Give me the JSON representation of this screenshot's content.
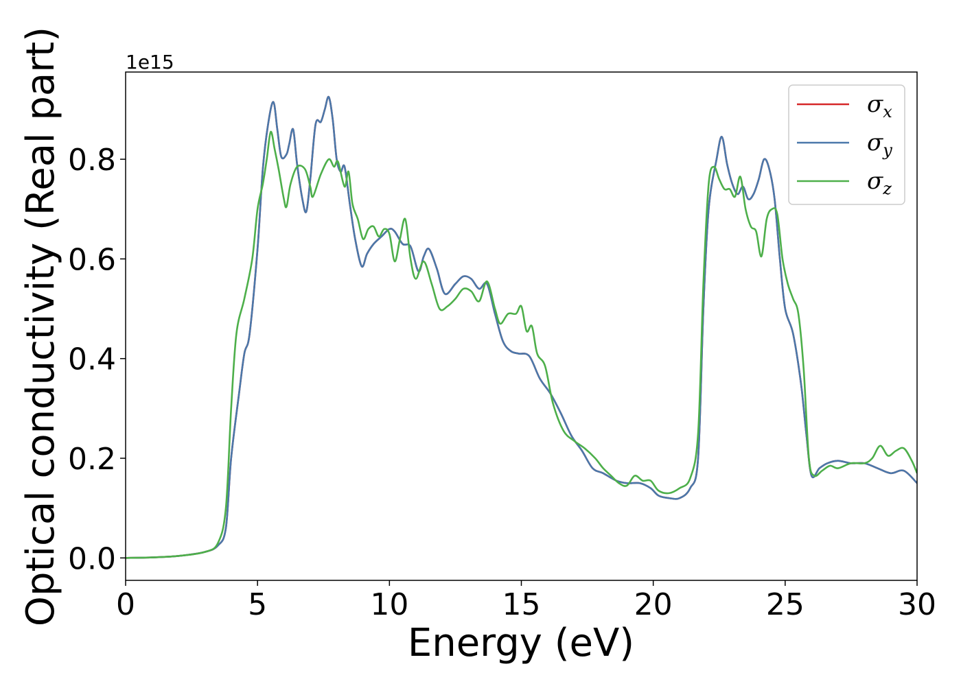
{
  "chart_data": {
    "type": "line",
    "xlabel": "Energy (eV)",
    "ylabel": "Optical conductivity (Real part)",
    "y_offset_text": "1e15",
    "xlim": [
      0,
      30
    ],
    "ylim": [
      -0.045,
      0.975
    ],
    "x_ticks": [
      0,
      5,
      10,
      15,
      20,
      25,
      30
    ],
    "x_tick_labels": [
      "0",
      "5",
      "10",
      "15",
      "20",
      "25",
      "30"
    ],
    "y_ticks": [
      0.0,
      0.2,
      0.4,
      0.6,
      0.8
    ],
    "y_tick_labels": [
      "0.0",
      "0.2",
      "0.4",
      "0.6",
      "0.8"
    ],
    "grid": false,
    "legend_position": "top-right",
    "series": [
      {
        "name": "σx",
        "legend_symbol": "σ",
        "legend_sub": "x",
        "color": "#d62728",
        "points": [
          [
            0,
            0
          ],
          [
            1,
            0.001
          ],
          [
            2,
            0.004
          ],
          [
            3,
            0.012
          ],
          [
            3.5,
            0.025
          ],
          [
            3.8,
            0.06
          ],
          [
            4.0,
            0.2
          ],
          [
            4.3,
            0.33
          ],
          [
            4.5,
            0.41
          ],
          [
            4.7,
            0.45
          ],
          [
            5.0,
            0.62
          ],
          [
            5.2,
            0.78
          ],
          [
            5.4,
            0.87
          ],
          [
            5.6,
            0.915
          ],
          [
            5.75,
            0.86
          ],
          [
            5.9,
            0.805
          ],
          [
            6.1,
            0.81
          ],
          [
            6.2,
            0.83
          ],
          [
            6.35,
            0.86
          ],
          [
            6.5,
            0.79
          ],
          [
            6.7,
            0.72
          ],
          [
            6.85,
            0.695
          ],
          [
            7.0,
            0.76
          ],
          [
            7.2,
            0.87
          ],
          [
            7.4,
            0.875
          ],
          [
            7.55,
            0.9
          ],
          [
            7.7,
            0.925
          ],
          [
            7.85,
            0.88
          ],
          [
            8.0,
            0.8
          ],
          [
            8.15,
            0.775
          ],
          [
            8.3,
            0.785
          ],
          [
            8.5,
            0.71
          ],
          [
            8.7,
            0.64
          ],
          [
            8.95,
            0.585
          ],
          [
            9.15,
            0.61
          ],
          [
            9.4,
            0.63
          ],
          [
            9.7,
            0.645
          ],
          [
            10.0,
            0.66
          ],
          [
            10.2,
            0.655
          ],
          [
            10.5,
            0.63
          ],
          [
            10.8,
            0.625
          ],
          [
            11.1,
            0.575
          ],
          [
            11.3,
            0.605
          ],
          [
            11.5,
            0.62
          ],
          [
            11.8,
            0.58
          ],
          [
            12.1,
            0.53
          ],
          [
            12.5,
            0.55
          ],
          [
            12.8,
            0.565
          ],
          [
            13.1,
            0.56
          ],
          [
            13.4,
            0.54
          ],
          [
            13.7,
            0.55
          ],
          [
            14.0,
            0.49
          ],
          [
            14.3,
            0.435
          ],
          [
            14.6,
            0.415
          ],
          [
            14.9,
            0.41
          ],
          [
            15.3,
            0.405
          ],
          [
            15.7,
            0.36
          ],
          [
            16.1,
            0.33
          ],
          [
            16.5,
            0.29
          ],
          [
            16.9,
            0.245
          ],
          [
            17.3,
            0.215
          ],
          [
            17.7,
            0.18
          ],
          [
            18.1,
            0.17
          ],
          [
            18.6,
            0.155
          ],
          [
            19.0,
            0.15
          ],
          [
            19.5,
            0.15
          ],
          [
            19.9,
            0.14
          ],
          [
            20.2,
            0.125
          ],
          [
            20.6,
            0.12
          ],
          [
            21.0,
            0.12
          ],
          [
            21.4,
            0.14
          ],
          [
            21.7,
            0.2
          ],
          [
            21.9,
            0.5
          ],
          [
            22.1,
            0.7
          ],
          [
            22.4,
            0.8
          ],
          [
            22.6,
            0.845
          ],
          [
            22.8,
            0.79
          ],
          [
            23.0,
            0.75
          ],
          [
            23.2,
            0.73
          ],
          [
            23.4,
            0.745
          ],
          [
            23.6,
            0.72
          ],
          [
            23.8,
            0.73
          ],
          [
            24.0,
            0.76
          ],
          [
            24.2,
            0.8
          ],
          [
            24.4,
            0.78
          ],
          [
            24.6,
            0.72
          ],
          [
            24.8,
            0.6
          ],
          [
            25.0,
            0.5
          ],
          [
            25.3,
            0.45
          ],
          [
            25.6,
            0.35
          ],
          [
            25.8,
            0.25
          ],
          [
            26.0,
            0.165
          ],
          [
            26.3,
            0.18
          ],
          [
            26.6,
            0.19
          ],
          [
            27.0,
            0.195
          ],
          [
            27.5,
            0.19
          ],
          [
            28.0,
            0.19
          ],
          [
            28.5,
            0.18
          ],
          [
            29.0,
            0.17
          ],
          [
            29.5,
            0.175
          ],
          [
            30,
            0.15
          ]
        ]
      },
      {
        "name": "σy",
        "legend_symbol": "σ",
        "legend_sub": "y",
        "color": "#4a78aa",
        "points": [
          [
            0,
            0
          ],
          [
            1,
            0.001
          ],
          [
            2,
            0.004
          ],
          [
            3,
            0.012
          ],
          [
            3.5,
            0.025
          ],
          [
            3.8,
            0.06
          ],
          [
            4.0,
            0.2
          ],
          [
            4.3,
            0.33
          ],
          [
            4.5,
            0.41
          ],
          [
            4.7,
            0.45
          ],
          [
            5.0,
            0.62
          ],
          [
            5.2,
            0.78
          ],
          [
            5.4,
            0.87
          ],
          [
            5.6,
            0.915
          ],
          [
            5.75,
            0.86
          ],
          [
            5.9,
            0.805
          ],
          [
            6.1,
            0.81
          ],
          [
            6.2,
            0.83
          ],
          [
            6.35,
            0.86
          ],
          [
            6.5,
            0.79
          ],
          [
            6.7,
            0.72
          ],
          [
            6.85,
            0.695
          ],
          [
            7.0,
            0.76
          ],
          [
            7.2,
            0.87
          ],
          [
            7.4,
            0.875
          ],
          [
            7.55,
            0.9
          ],
          [
            7.7,
            0.925
          ],
          [
            7.85,
            0.88
          ],
          [
            8.0,
            0.8
          ],
          [
            8.15,
            0.775
          ],
          [
            8.3,
            0.785
          ],
          [
            8.5,
            0.71
          ],
          [
            8.7,
            0.64
          ],
          [
            8.95,
            0.585
          ],
          [
            9.15,
            0.61
          ],
          [
            9.4,
            0.63
          ],
          [
            9.7,
            0.645
          ],
          [
            10.0,
            0.66
          ],
          [
            10.2,
            0.655
          ],
          [
            10.5,
            0.63
          ],
          [
            10.8,
            0.625
          ],
          [
            11.1,
            0.575
          ],
          [
            11.3,
            0.605
          ],
          [
            11.5,
            0.62
          ],
          [
            11.8,
            0.58
          ],
          [
            12.1,
            0.53
          ],
          [
            12.5,
            0.55
          ],
          [
            12.8,
            0.565
          ],
          [
            13.1,
            0.56
          ],
          [
            13.4,
            0.54
          ],
          [
            13.7,
            0.55
          ],
          [
            14.0,
            0.49
          ],
          [
            14.3,
            0.435
          ],
          [
            14.6,
            0.415
          ],
          [
            14.9,
            0.41
          ],
          [
            15.3,
            0.405
          ],
          [
            15.7,
            0.36
          ],
          [
            16.1,
            0.33
          ],
          [
            16.5,
            0.29
          ],
          [
            16.9,
            0.245
          ],
          [
            17.3,
            0.215
          ],
          [
            17.7,
            0.18
          ],
          [
            18.1,
            0.17
          ],
          [
            18.6,
            0.155
          ],
          [
            19.0,
            0.15
          ],
          [
            19.5,
            0.15
          ],
          [
            19.9,
            0.14
          ],
          [
            20.2,
            0.125
          ],
          [
            20.6,
            0.12
          ],
          [
            21.0,
            0.12
          ],
          [
            21.4,
            0.14
          ],
          [
            21.7,
            0.2
          ],
          [
            21.9,
            0.5
          ],
          [
            22.1,
            0.7
          ],
          [
            22.4,
            0.8
          ],
          [
            22.6,
            0.845
          ],
          [
            22.8,
            0.79
          ],
          [
            23.0,
            0.75
          ],
          [
            23.2,
            0.73
          ],
          [
            23.4,
            0.745
          ],
          [
            23.6,
            0.72
          ],
          [
            23.8,
            0.73
          ],
          [
            24.0,
            0.76
          ],
          [
            24.2,
            0.8
          ],
          [
            24.4,
            0.78
          ],
          [
            24.6,
            0.72
          ],
          [
            24.8,
            0.6
          ],
          [
            25.0,
            0.5
          ],
          [
            25.3,
            0.45
          ],
          [
            25.6,
            0.35
          ],
          [
            25.8,
            0.25
          ],
          [
            26.0,
            0.165
          ],
          [
            26.3,
            0.18
          ],
          [
            26.6,
            0.19
          ],
          [
            27.0,
            0.195
          ],
          [
            27.5,
            0.19
          ],
          [
            28.0,
            0.19
          ],
          [
            28.5,
            0.18
          ],
          [
            29.0,
            0.17
          ],
          [
            29.5,
            0.175
          ],
          [
            30,
            0.15
          ]
        ]
      },
      {
        "name": "σz",
        "legend_symbol": "σ",
        "legend_sub": "z",
        "color": "#4daf4a",
        "points": [
          [
            0,
            0
          ],
          [
            1,
            0.001
          ],
          [
            2,
            0.004
          ],
          [
            3,
            0.012
          ],
          [
            3.5,
            0.03
          ],
          [
            3.8,
            0.1
          ],
          [
            4.0,
            0.3
          ],
          [
            4.2,
            0.45
          ],
          [
            4.5,
            0.52
          ],
          [
            4.8,
            0.6
          ],
          [
            5.0,
            0.7
          ],
          [
            5.2,
            0.75
          ],
          [
            5.35,
            0.8
          ],
          [
            5.5,
            0.855
          ],
          [
            5.65,
            0.82
          ],
          [
            5.8,
            0.78
          ],
          [
            6.0,
            0.72
          ],
          [
            6.1,
            0.705
          ],
          [
            6.25,
            0.75
          ],
          [
            6.5,
            0.785
          ],
          [
            6.8,
            0.78
          ],
          [
            7.0,
            0.745
          ],
          [
            7.1,
            0.725
          ],
          [
            7.4,
            0.77
          ],
          [
            7.7,
            0.8
          ],
          [
            7.9,
            0.785
          ],
          [
            8.05,
            0.795
          ],
          [
            8.3,
            0.745
          ],
          [
            8.45,
            0.775
          ],
          [
            8.6,
            0.71
          ],
          [
            8.8,
            0.68
          ],
          [
            9.0,
            0.64
          ],
          [
            9.2,
            0.66
          ],
          [
            9.4,
            0.665
          ],
          [
            9.6,
            0.645
          ],
          [
            9.8,
            0.66
          ],
          [
            10.0,
            0.65
          ],
          [
            10.2,
            0.595
          ],
          [
            10.4,
            0.64
          ],
          [
            10.6,
            0.68
          ],
          [
            10.8,
            0.6
          ],
          [
            11.0,
            0.56
          ],
          [
            11.3,
            0.595
          ],
          [
            11.6,
            0.55
          ],
          [
            11.9,
            0.5
          ],
          [
            12.2,
            0.505
          ],
          [
            12.5,
            0.52
          ],
          [
            12.8,
            0.54
          ],
          [
            13.1,
            0.535
          ],
          [
            13.4,
            0.515
          ],
          [
            13.7,
            0.555
          ],
          [
            14.0,
            0.5
          ],
          [
            14.2,
            0.47
          ],
          [
            14.5,
            0.49
          ],
          [
            14.8,
            0.49
          ],
          [
            15.0,
            0.505
          ],
          [
            15.2,
            0.455
          ],
          [
            15.4,
            0.465
          ],
          [
            15.6,
            0.41
          ],
          [
            15.9,
            0.385
          ],
          [
            16.2,
            0.31
          ],
          [
            16.6,
            0.255
          ],
          [
            17.0,
            0.235
          ],
          [
            17.4,
            0.22
          ],
          [
            17.8,
            0.2
          ],
          [
            18.1,
            0.18
          ],
          [
            18.4,
            0.165
          ],
          [
            18.7,
            0.15
          ],
          [
            19.0,
            0.145
          ],
          [
            19.3,
            0.165
          ],
          [
            19.6,
            0.155
          ],
          [
            19.9,
            0.155
          ],
          [
            20.2,
            0.135
          ],
          [
            20.6,
            0.13
          ],
          [
            21.0,
            0.14
          ],
          [
            21.4,
            0.16
          ],
          [
            21.7,
            0.25
          ],
          [
            21.9,
            0.55
          ],
          [
            22.1,
            0.75
          ],
          [
            22.3,
            0.785
          ],
          [
            22.5,
            0.76
          ],
          [
            22.7,
            0.74
          ],
          [
            22.9,
            0.74
          ],
          [
            23.1,
            0.725
          ],
          [
            23.3,
            0.765
          ],
          [
            23.5,
            0.7
          ],
          [
            23.7,
            0.665
          ],
          [
            23.9,
            0.655
          ],
          [
            24.1,
            0.605
          ],
          [
            24.3,
            0.68
          ],
          [
            24.5,
            0.7
          ],
          [
            24.7,
            0.69
          ],
          [
            24.9,
            0.6
          ],
          [
            25.1,
            0.55
          ],
          [
            25.3,
            0.52
          ],
          [
            25.5,
            0.49
          ],
          [
            25.7,
            0.38
          ],
          [
            25.9,
            0.2
          ],
          [
            26.1,
            0.165
          ],
          [
            26.4,
            0.175
          ],
          [
            26.7,
            0.185
          ],
          [
            27.0,
            0.18
          ],
          [
            27.5,
            0.19
          ],
          [
            28.0,
            0.19
          ],
          [
            28.3,
            0.2
          ],
          [
            28.6,
            0.225
          ],
          [
            28.9,
            0.205
          ],
          [
            29.2,
            0.215
          ],
          [
            29.5,
            0.22
          ],
          [
            29.8,
            0.195
          ],
          [
            30,
            0.17
          ]
        ]
      }
    ]
  }
}
